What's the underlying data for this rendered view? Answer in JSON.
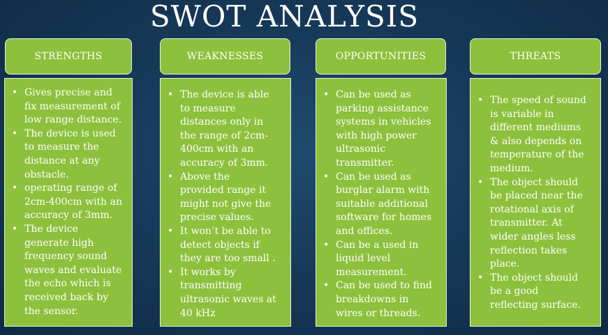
{
  "title": "SWOT ANALYSIS",
  "columns": [
    {
      "header": "STRENGTHS",
      "items": [
        "Gives  precise and\nfix measurement of\nlow range distance.",
        "The device is used\nto measure the\ndistance at any\nobstacle.",
        "operating range of\n2cm-400cm with an\naccuracy of 3mm.",
        "The device\ngenerate high\nfrequency sound\nwaves and evaluate\nthe echo which is\nreceived back by\nthe sensor."
      ]
    },
    {
      "header": "WEAKNESSES",
      "items": [
        "The device is able\nto measure\ndistances  only in\nthe range of 2cm-\n400cm with an\naccuracy of 3mm.",
        "Above the\nprovided range it\nmight not give the\nprecise values.",
        "It won’t be able to\ndetect objects if\nthey are too small .",
        "It works by\ntransmitting\nultrasonic waves at\n40 kHz"
      ]
    },
    {
      "header": "OPPORTUNITIES",
      "items": [
        "Can be used as\nparking assistance\nsystems in vehicles\nwith high power\nultrasonic\ntransmitter.",
        "Can be used as\nburglar alarm with\nsuitable additional\nsoftware for homes\nand offices.",
        "Can be a used in\nliquid level\nmeasurement.",
        "Can be used to find\nbreakdowns in\nwires or threads."
      ]
    },
    {
      "header": "THREATS",
      "items": [
        "The speed of sound\nis variable in\ndifferent mediums\n& also depends on\ntemperature of the\nmedium.",
        "The object should\nbe placed near the\nrotational axis of\ntransmitter. At\nwider angles less\nreflection takes\nplace.",
        "The object should\nbe a good\nreflecting surface."
      ]
    }
  ]
}
